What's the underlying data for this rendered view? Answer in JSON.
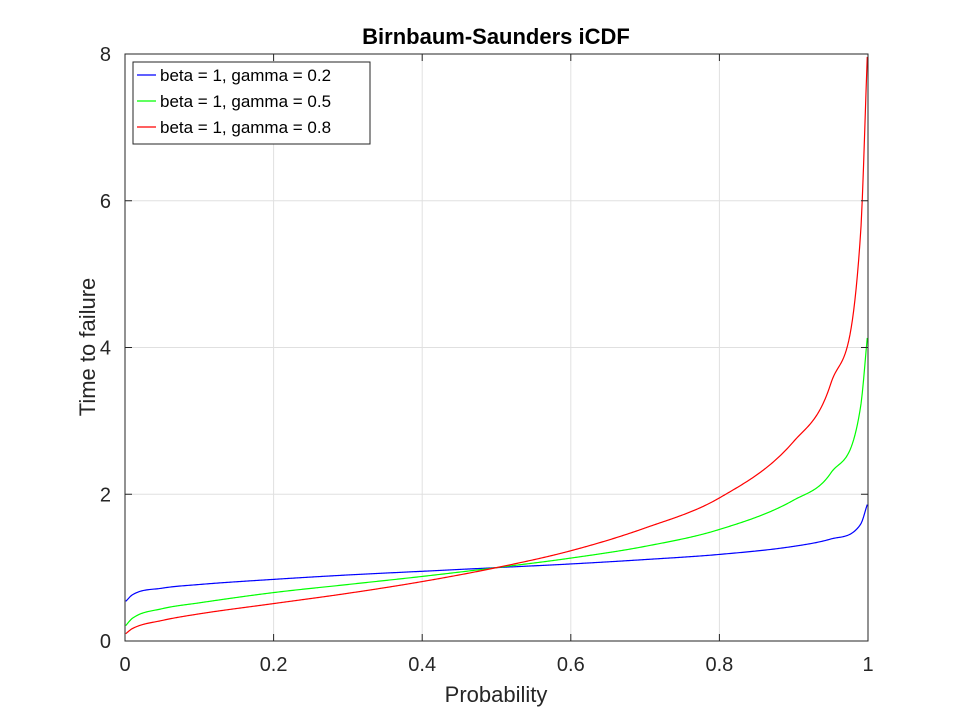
{
  "chart_data": {
    "type": "line",
    "title": "Birnbaum-Saunders iCDF",
    "xlabel": "Probability",
    "ylabel": "Time to failure",
    "xlim": [
      0,
      1
    ],
    "ylim": [
      0,
      8
    ],
    "xticks": [
      0,
      0.2,
      0.4,
      0.6,
      0.8,
      1
    ],
    "xtick_labels": [
      "0",
      "0.2",
      "0.4",
      "0.6",
      "0.8",
      "1"
    ],
    "yticks": [
      0,
      2,
      4,
      6,
      8
    ],
    "ytick_labels": [
      "0",
      "2",
      "4",
      "6",
      "8"
    ],
    "grid": true,
    "legend_position": "top-left",
    "x": [
      0.001,
      0.01,
      0.05,
      0.1,
      0.2,
      0.3,
      0.4,
      0.5,
      0.6,
      0.7,
      0.8,
      0.9,
      0.95,
      0.99,
      0.999
    ],
    "series": [
      {
        "name": "beta = 1, gamma = 0.2",
        "color": "#0000ff",
        "values": [
          0.54,
          0.63,
          0.72,
          0.77,
          0.84,
          0.9,
          0.95,
          1.0,
          1.05,
          1.11,
          1.18,
          1.29,
          1.39,
          1.59,
          1.86
        ]
      },
      {
        "name": "beta = 1, gamma = 0.5",
        "color": "#00ff00",
        "values": [
          0.21,
          0.31,
          0.44,
          0.52,
          0.66,
          0.77,
          0.88,
          1.0,
          1.13,
          1.29,
          1.52,
          1.92,
          2.29,
          3.19,
          4.13
        ]
      },
      {
        "name": "beta = 1, gamma = 0.8",
        "color": "#ff0000",
        "values": [
          0.1,
          0.17,
          0.28,
          0.37,
          0.51,
          0.65,
          0.81,
          1.0,
          1.23,
          1.54,
          1.95,
          2.72,
          3.51,
          5.55,
          7.96
        ]
      }
    ]
  }
}
